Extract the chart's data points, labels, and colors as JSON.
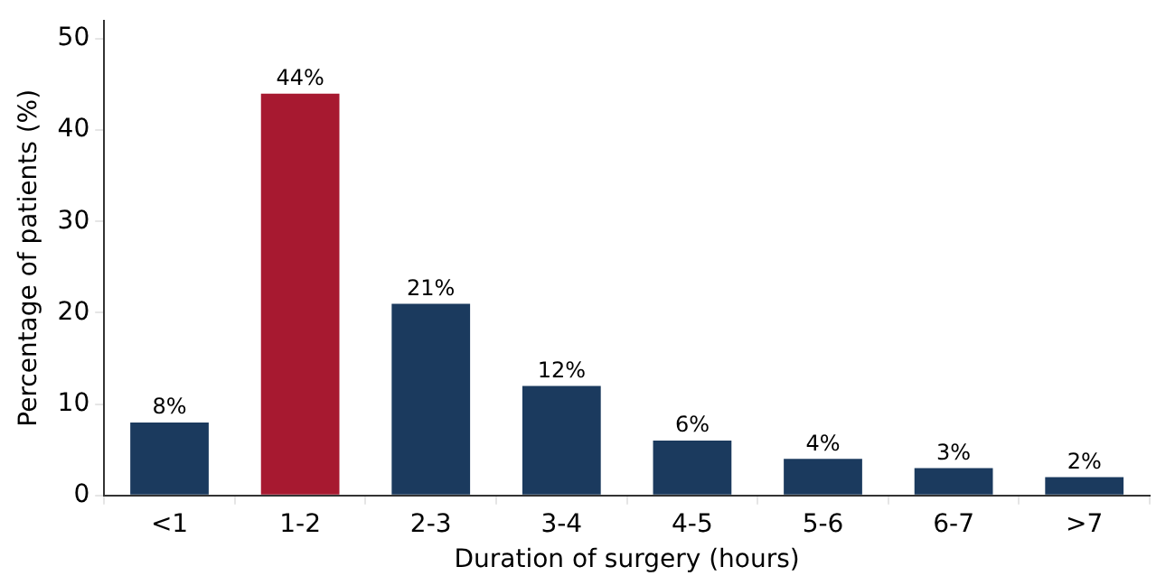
{
  "chart_data": {
    "type": "bar",
    "xlabel": "Duration of surgery (hours)",
    "ylabel": "Percentage of patients (%)",
    "categories": [
      "<1",
      "1-2",
      "2-3",
      "3-4",
      "4-5",
      "5-6",
      "6-7",
      ">7"
    ],
    "values": [
      8,
      44,
      21,
      12,
      6,
      4,
      3,
      2
    ],
    "colors": [
      "#1b3a5e",
      "#a71930",
      "#1b3a5e",
      "#1b3a5e",
      "#1b3a5e",
      "#1b3a5e",
      "#1b3a5e",
      "#1b3a5e"
    ],
    "value_labels": [
      "8%",
      "44%",
      "21%",
      "12%",
      "6%",
      "4%",
      "3%",
      "2%"
    ],
    "ylim": [
      0,
      52
    ],
    "yticks": [
      0,
      10,
      20,
      30,
      40,
      50
    ],
    "grid": false,
    "legend": false
  }
}
